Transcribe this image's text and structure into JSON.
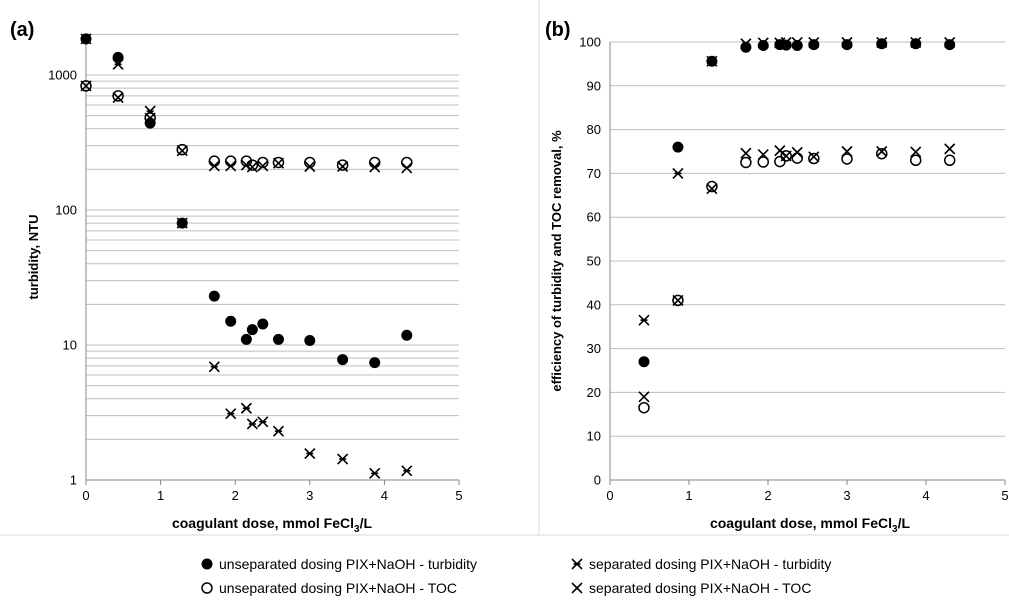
{
  "chart_data": [
    {
      "panel_label": "(a)",
      "type": "scatter",
      "xlabel": "coagulant dose, mmol FeCl",
      "xlabel_sub": "3",
      "xlabel_tail": "/L",
      "ylabel": "turbidity, NTU",
      "x_ticks": [
        0,
        1,
        2,
        3,
        4,
        5
      ],
      "xlim": [
        0,
        5
      ],
      "y_scale": "log",
      "ylim": [
        1,
        2000
      ],
      "y_ticks": [
        1,
        10,
        100,
        1000
      ],
      "grid": "horizontal, log minor",
      "series": [
        {
          "marker": "filled-circle",
          "x": [
            0,
            0.43,
            0.86,
            1.29,
            1.72,
            1.94,
            2.15,
            2.23,
            2.37,
            2.58,
            3.0,
            3.44,
            3.87,
            4.3
          ],
          "y": [
            1850,
            1350,
            440,
            80,
            23,
            15,
            11,
            13,
            14.3,
            11,
            10.8,
            7.8,
            7.4,
            11.8
          ]
        },
        {
          "marker": "open-circle",
          "x": [
            0,
            0.43,
            0.86,
            1.29,
            1.72,
            1.94,
            2.15,
            2.23,
            2.37,
            2.58,
            3.0,
            3.44,
            3.87,
            4.3
          ],
          "y": [
            830,
            700,
            480,
            280,
            230,
            230,
            230,
            215,
            225,
            225,
            225,
            215,
            225,
            225
          ]
        },
        {
          "marker": "asterisk",
          "x": [
            0,
            0.43,
            0.86,
            1.29,
            1.72,
            1.94,
            2.15,
            2.23,
            2.37,
            2.58,
            3.0,
            3.44,
            3.87,
            4.3
          ],
          "y": [
            1850,
            1200,
            540,
            80,
            6.9,
            3.1,
            3.4,
            2.6,
            2.7,
            2.3,
            1.57,
            1.43,
            1.12,
            1.17
          ]
        },
        {
          "marker": "x-cross",
          "x": [
            0,
            0.43,
            0.86,
            1.29,
            1.72,
            1.94,
            2.15,
            2.23,
            2.37,
            2.58,
            3.0,
            3.44,
            3.87,
            4.3
          ],
          "y": [
            830,
            680,
            480,
            275,
            212,
            212,
            215,
            208,
            212,
            222,
            210,
            210,
            208,
            205
          ]
        }
      ]
    },
    {
      "panel_label": "(b)",
      "type": "scatter",
      "xlabel": "coagulant dose, mmol FeCl",
      "xlabel_sub": "3",
      "xlabel_tail": "/L",
      "ylabel": "efficiency of turbidity and TOC removal, %",
      "x_ticks": [
        0,
        1,
        2,
        3,
        4,
        5
      ],
      "xlim": [
        0,
        5
      ],
      "ylim": [
        0,
        100
      ],
      "y_ticks": [
        0,
        10,
        20,
        30,
        40,
        50,
        60,
        70,
        80,
        90,
        100
      ],
      "grid": "horizontal",
      "series": [
        {
          "marker": "filled-circle",
          "x": [
            0.43,
            0.86,
            1.29,
            1.72,
            1.94,
            2.15,
            2.23,
            2.37,
            2.58,
            3.0,
            3.44,
            3.87,
            4.3
          ],
          "y": [
            27,
            76,
            95.6,
            98.8,
            99.2,
            99.4,
            99.3,
            99.2,
            99.4,
            99.4,
            99.6,
            99.6,
            99.4
          ]
        },
        {
          "marker": "open-circle",
          "x": [
            0.43,
            0.86,
            1.29,
            1.72,
            1.94,
            2.15,
            2.23,
            2.37,
            2.58,
            3.0,
            3.44,
            3.87,
            4.3
          ],
          "y": [
            16.5,
            41,
            67,
            72.5,
            72.6,
            72.7,
            74,
            73.5,
            73.4,
            73.3,
            74.5,
            73,
            73
          ]
        },
        {
          "marker": "asterisk",
          "x": [
            0.43,
            0.86,
            1.29,
            1.72,
            1.94,
            2.15,
            2.23,
            2.37,
            2.58,
            3.0,
            3.44,
            3.87,
            4.3
          ],
          "y": [
            36.5,
            70,
            95.6,
            99.6,
            99.8,
            99.8,
            99.9,
            99.9,
            99.9,
            99.9,
            99.9,
            99.9,
            99.9
          ]
        },
        {
          "marker": "x-cross",
          "x": [
            0.43,
            0.86,
            1.29,
            1.72,
            1.94,
            2.15,
            2.23,
            2.37,
            2.58,
            3.0,
            3.44,
            3.87,
            4.3
          ],
          "y": [
            19,
            41,
            66.5,
            74.6,
            74.3,
            75.2,
            74,
            74.8,
            73.8,
            75,
            75,
            74.9,
            75.6
          ]
        }
      ]
    }
  ],
  "legend": [
    {
      "marker": "filled-circle",
      "label": "unseparated dosing PIX+NaOH - turbidity"
    },
    {
      "marker": "asterisk",
      "label": "separated dosing PIX+NaOH - turbidity"
    },
    {
      "marker": "open-circle",
      "label": "unseparated dosing PIX+NaOH - TOC"
    },
    {
      "marker": "x-cross",
      "label": "separated dosing PIX+NaOH - TOC"
    }
  ],
  "colors": {
    "marker": "#000000",
    "grid": "#bfbfbf",
    "axis": "#868686",
    "panel_divider": "#d9d9d9"
  }
}
